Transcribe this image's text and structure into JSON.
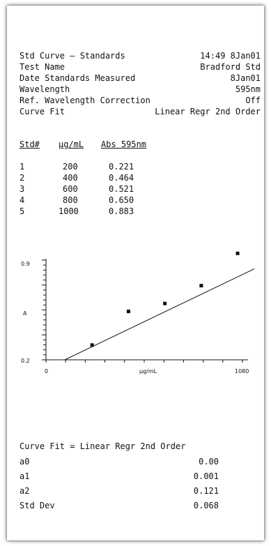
{
  "header": {
    "rows": [
      {
        "label": "Std Curve — Standards",
        "value": "14:49 8Jan01"
      },
      {
        "label": "Test Name",
        "value": "Bradford Std"
      },
      {
        "label": "Date Standards Measured",
        "value": "8Jan01"
      },
      {
        "label": "Wavelength",
        "value": "595nm"
      },
      {
        "label": "Ref. Wavelength Correction",
        "value": "Off"
      },
      {
        "label": "Curve Fit",
        "value": "Linear Regr 2nd Order"
      }
    ]
  },
  "standards_table": {
    "columns": [
      "Std#",
      "µg/mL",
      "Abs 595nm"
    ],
    "rows": [
      [
        "1",
        "200",
        "0.221"
      ],
      [
        "2",
        "400",
        "0.464"
      ],
      [
        "3",
        "600",
        "0.521"
      ],
      [
        "4",
        "800",
        "0.650"
      ],
      [
        "5",
        "1000",
        "0.883"
      ]
    ]
  },
  "chart_data": {
    "type": "scatter",
    "xlabel": "µg/mL",
    "ylabel": "A",
    "x_tick_labels": [
      "0",
      "1080"
    ],
    "y_tick_labels": [
      "0.9",
      "0.2"
    ],
    "xlim": [
      0,
      1080
    ],
    "ylim": [
      0.2,
      0.9
    ],
    "points": [
      {
        "x": 200,
        "y": 0.221
      },
      {
        "x": 400,
        "y": 0.464
      },
      {
        "x": 600,
        "y": 0.521
      },
      {
        "x": 800,
        "y": 0.65
      },
      {
        "x": 1000,
        "y": 0.883
      }
    ],
    "fit_line": {
      "x": [
        50,
        1080
      ],
      "y": [
        0.2,
        0.857
      ]
    }
  },
  "fit_results": {
    "title": "Curve Fit = Linear Regr 2nd Order",
    "rows": [
      {
        "label": "a0",
        "value": "0.00"
      },
      {
        "label": "a1",
        "value": "0.001"
      },
      {
        "label": "a2",
        "value": "0.121"
      },
      {
        "label": "Std Dev",
        "value": "0.068"
      }
    ]
  }
}
